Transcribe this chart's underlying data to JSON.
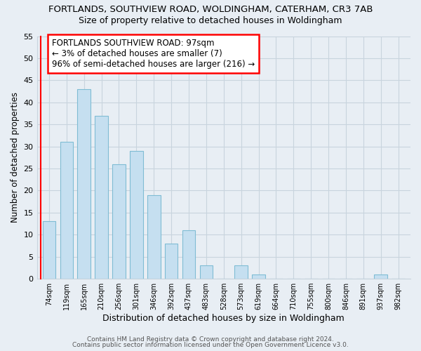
{
  "title": "FORTLANDS, SOUTHVIEW ROAD, WOLDINGHAM, CATERHAM, CR3 7AB",
  "subtitle": "Size of property relative to detached houses in Woldingham",
  "xlabel": "Distribution of detached houses by size in Woldingham",
  "ylabel": "Number of detached properties",
  "footer_lines": [
    "Contains HM Land Registry data © Crown copyright and database right 2024.",
    "Contains public sector information licensed under the Open Government Licence v3.0."
  ],
  "bin_labels": [
    "74sqm",
    "119sqm",
    "165sqm",
    "210sqm",
    "256sqm",
    "301sqm",
    "346sqm",
    "392sqm",
    "437sqm",
    "483sqm",
    "528sqm",
    "573sqm",
    "619sqm",
    "664sqm",
    "710sqm",
    "755sqm",
    "800sqm",
    "846sqm",
    "891sqm",
    "937sqm",
    "982sqm"
  ],
  "bar_heights": [
    13,
    31,
    43,
    37,
    26,
    29,
    19,
    8,
    11,
    3,
    0,
    3,
    1,
    0,
    0,
    0,
    0,
    0,
    0,
    1,
    0
  ],
  "bar_color": "#c5dff0",
  "bar_edge_color": "#7fbcd4",
  "highlight_bar_index": 0,
  "highlight_edge_color": "red",
  "ylim": [
    0,
    55
  ],
  "yticks": [
    0,
    5,
    10,
    15,
    20,
    25,
    30,
    35,
    40,
    45,
    50,
    55
  ],
  "annotation_title": "FORTLANDS SOUTHVIEW ROAD: 97sqm",
  "annotation_line1": "← 3% of detached houses are smaller (7)",
  "annotation_line2": "96% of semi-detached houses are larger (216) →",
  "background_color": "#e8eef4",
  "grid_color": "#c8d4de",
  "title_fontsize": 9.5,
  "subtitle_fontsize": 9
}
